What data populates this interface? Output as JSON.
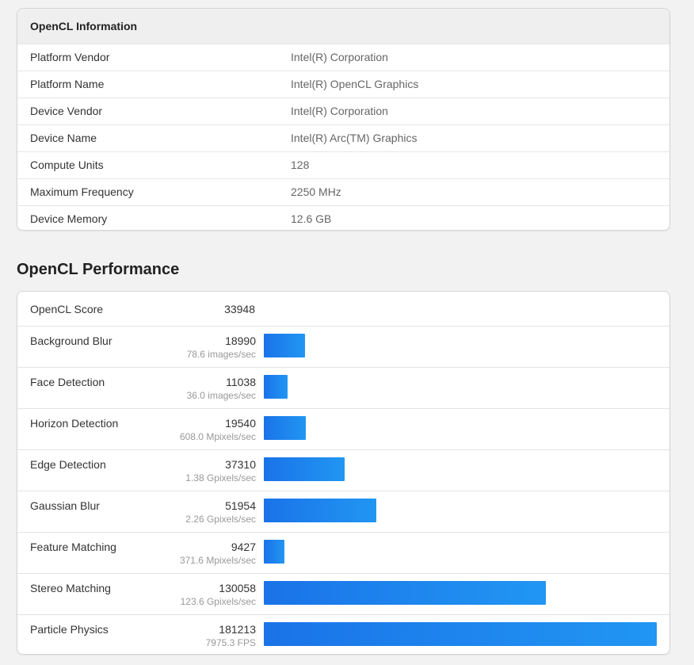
{
  "info": {
    "title": "OpenCL Information",
    "rows": [
      {
        "label": "Platform Vendor",
        "value": "Intel(R) Corporation"
      },
      {
        "label": "Platform Name",
        "value": "Intel(R) OpenCL Graphics"
      },
      {
        "label": "Device Vendor",
        "value": "Intel(R) Corporation"
      },
      {
        "label": "Device Name",
        "value": "Intel(R) Arc(TM) Graphics"
      },
      {
        "label": "Compute Units",
        "value": "128"
      },
      {
        "label": "Maximum Frequency",
        "value": "2250 MHz"
      },
      {
        "label": "Device Memory",
        "value": "12.6 GB"
      }
    ]
  },
  "perf": {
    "title": "OpenCL Performance",
    "score_label": "OpenCL Score",
    "score_value": "33948",
    "bar_color": "#1a73e8",
    "max_score": 181213,
    "rows": [
      {
        "label": "Background Blur",
        "score": "18990",
        "rate": "78.6 images/sec",
        "value": 18990
      },
      {
        "label": "Face Detection",
        "score": "11038",
        "rate": "36.0 images/sec",
        "value": 11038
      },
      {
        "label": "Horizon Detection",
        "score": "19540",
        "rate": "608.0 Mpixels/sec",
        "value": 19540
      },
      {
        "label": "Edge Detection",
        "score": "37310",
        "rate": "1.38 Gpixels/sec",
        "value": 37310
      },
      {
        "label": "Gaussian Blur",
        "score": "51954",
        "rate": "2.26 Gpixels/sec",
        "value": 51954
      },
      {
        "label": "Feature Matching",
        "score": "9427",
        "rate": "371.6 Mpixels/sec",
        "value": 9427
      },
      {
        "label": "Stereo Matching",
        "score": "130058",
        "rate": "123.6 Gpixels/sec",
        "value": 130058
      },
      {
        "label": "Particle Physics",
        "score": "181213",
        "rate": "7975.3 FPS",
        "value": 181213
      }
    ]
  }
}
